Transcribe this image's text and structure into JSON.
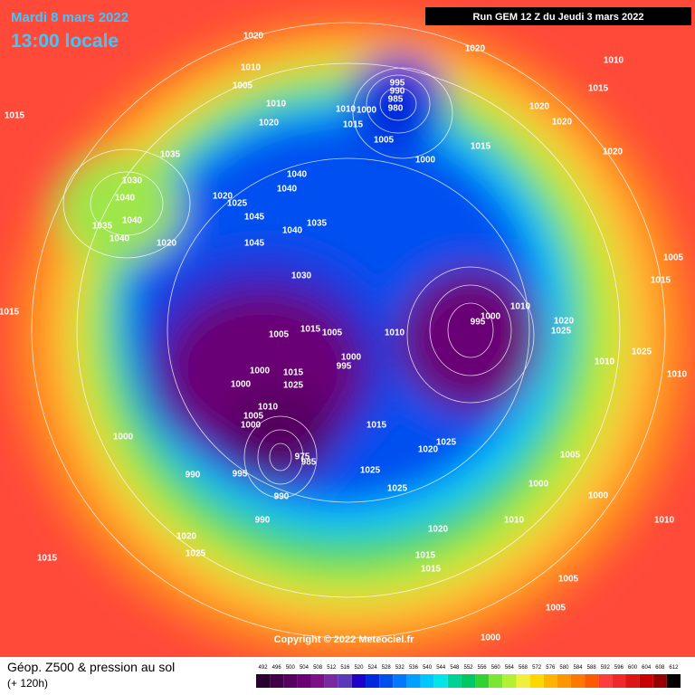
{
  "header": {
    "date": "Mardi 8 mars 2022",
    "time": "13:00 locale",
    "run": "Run GEM 12 Z du Jeudi 3 mars 2022"
  },
  "copyright": "Copyright © 2022 Meteociel.fr",
  "footer": {
    "title": "Géop. Z500 & pression au sol",
    "subtitle": "(+ 120h)"
  },
  "isobar_labels": [
    "1020",
    "1010",
    "1005",
    "1010",
    "1020",
    "1015",
    "1035",
    "1030",
    "1040",
    "1040",
    "1035",
    "1040",
    "1020",
    "1020",
    "1025",
    "1045",
    "1045",
    "1040",
    "1035",
    "1040",
    "1040",
    "995",
    "990",
    "985",
    "980",
    "1010",
    "1000",
    "1015",
    "1005",
    "1000",
    "1015",
    "1020",
    "1010",
    "1015",
    "1020",
    "1020",
    "1020",
    "1030",
    "995",
    "1000",
    "1010",
    "1020",
    "1025",
    "1010",
    "1025",
    "1005",
    "1015",
    "1010",
    "1015",
    "1005",
    "1005",
    "1010",
    "1000",
    "995",
    "1000",
    "1000",
    "1015",
    "1025",
    "1010",
    "1005",
    "1000",
    "1015",
    "1020",
    "1025",
    "1025",
    "1025",
    "1000",
    "990",
    "995",
    "990",
    "990",
    "975",
    "985",
    "1005",
    "1000",
    "1000",
    "1010",
    "1020",
    "1015",
    "1015",
    "1020",
    "1025",
    "1015",
    "1005",
    "1005",
    "1000",
    "1010",
    "1015"
  ],
  "legend": {
    "values": [
      492,
      496,
      500,
      504,
      508,
      512,
      516,
      520,
      524,
      528,
      532,
      536,
      540,
      544,
      548,
      552,
      556,
      560,
      564,
      568,
      572,
      576,
      580,
      584,
      588,
      592,
      596,
      600,
      604,
      608,
      612
    ],
    "colors": [
      "#2a0030",
      "#400048",
      "#55005e",
      "#6a0074",
      "#7d1088",
      "#7a2aa0",
      "#5a3ab8",
      "#1e00c8",
      "#0028dc",
      "#0050f0",
      "#0078ff",
      "#00a0ff",
      "#00c8ff",
      "#00e6e6",
      "#00d296",
      "#00c864",
      "#32d232",
      "#78e632",
      "#b4f032",
      "#f0f03c",
      "#ffd700",
      "#ffb400",
      "#ff9600",
      "#ff7800",
      "#ff5a00",
      "#ff3c3c",
      "#f02828",
      "#dc1414",
      "#c80000",
      "#960000",
      "#000000"
    ]
  }
}
